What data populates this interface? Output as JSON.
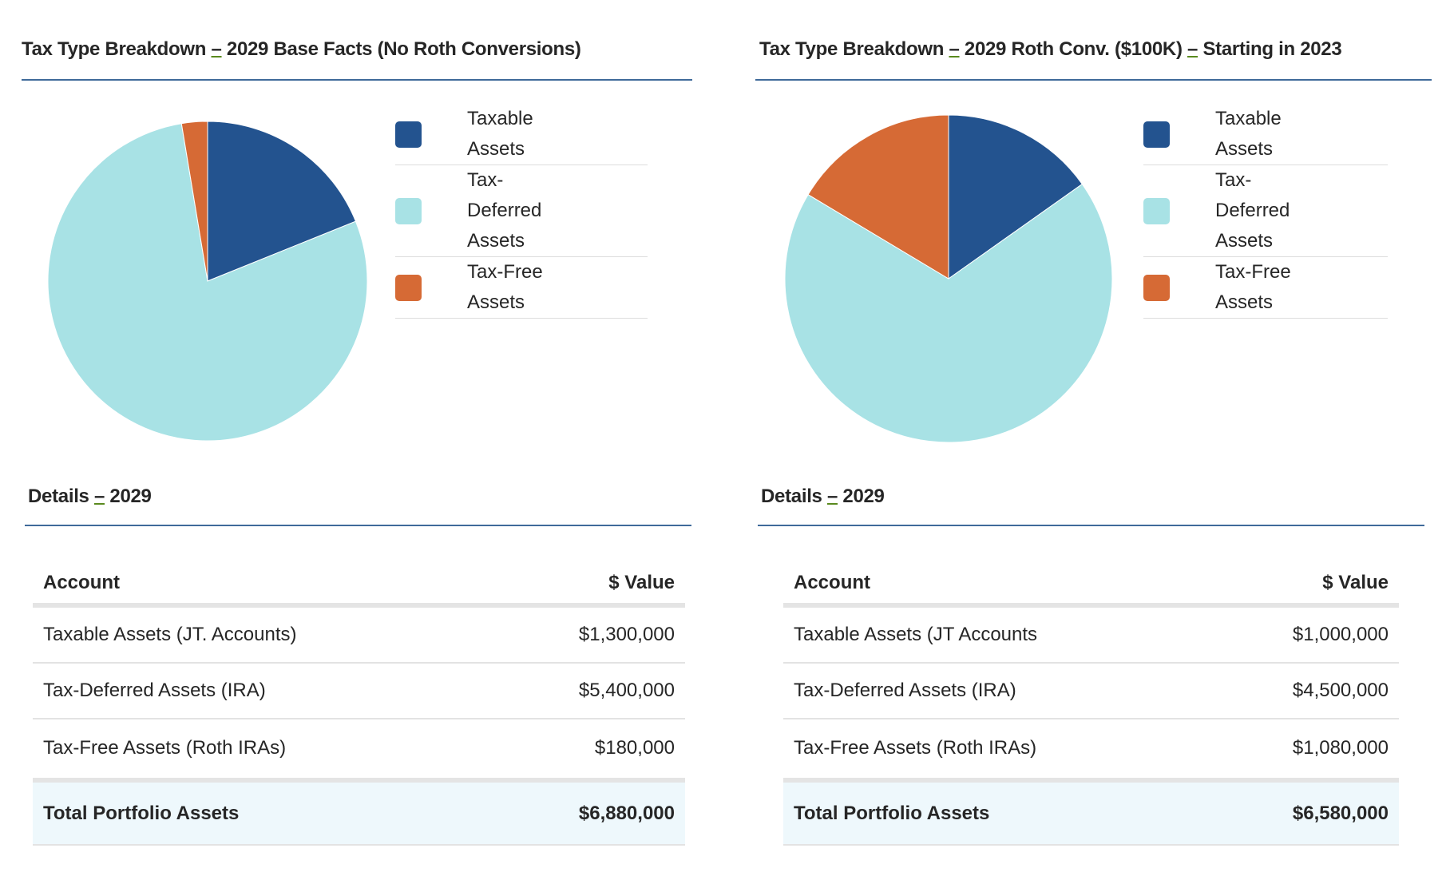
{
  "colors": {
    "taxable": "#23538f",
    "tax_deferred": "#a8e2e5",
    "tax_free": "#d66a35",
    "rule": "#3f6a9a",
    "total_bg": "#eef8fc"
  },
  "panels": [
    {
      "title_a": "Tax Type Breakdown ",
      "title_dash": "–",
      "title_b": " 2029 Base Facts (No Roth Conversions)",
      "details_a": "Details ",
      "details_dash": "–",
      "details_b": " 2029",
      "table": {
        "headers": [
          "Account",
          "$ Value"
        ],
        "rows": [
          [
            "Taxable Assets (JT. Accounts)",
            "$1,300,000"
          ],
          [
            "Tax-Deferred Assets (IRA)",
            "$5,400,000"
          ],
          [
            "Tax-Free Assets (Roth IRAs)",
            "$180,000"
          ]
        ],
        "total": [
          "Total Portfolio Assets",
          "$6,880,000"
        ]
      }
    },
    {
      "title_a": "Tax Type Breakdown ",
      "title_dash": "–",
      "title_b": " 2029 Roth Conv. ($100K) ",
      "title_dash2": "–",
      "title_c": " Starting in 2023",
      "details_a": "Details ",
      "details_dash": "–",
      "details_b": " 2029",
      "table": {
        "headers": [
          "Account",
          "$ Value"
        ],
        "rows": [
          [
            "Taxable Assets (JT Accounts",
            "$1,000,000"
          ],
          [
            "Tax-Deferred Assets (IRA)",
            "$4,500,000"
          ],
          [
            "Tax-Free Assets (Roth IRAs)",
            "$1,080,000"
          ]
        ],
        "total": [
          "Total Portfolio Assets",
          "$6,580,000"
        ]
      }
    }
  ],
  "chart_data": [
    {
      "type": "pie",
      "categories": [
        "Taxable Assets",
        "Tax-Deferred Assets",
        "Tax-Free Assets"
      ],
      "values": [
        1300000,
        5400000,
        180000
      ],
      "legend_labels": [
        [
          "Taxable",
          "Assets"
        ],
        [
          "Tax-",
          "Deferred",
          "Assets"
        ],
        [
          "Tax-Free",
          "Assets"
        ]
      ],
      "legend": "right"
    },
    {
      "type": "pie",
      "categories": [
        "Taxable Assets",
        "Tax-Deferred Assets",
        "Tax-Free Assets"
      ],
      "values": [
        1000000,
        4500000,
        1080000
      ],
      "legend_labels": [
        [
          "Taxable",
          "Assets"
        ],
        [
          "Tax-",
          "Deferred",
          "Assets"
        ],
        [
          "Tax-Free",
          "Assets"
        ]
      ],
      "legend": "right"
    }
  ]
}
